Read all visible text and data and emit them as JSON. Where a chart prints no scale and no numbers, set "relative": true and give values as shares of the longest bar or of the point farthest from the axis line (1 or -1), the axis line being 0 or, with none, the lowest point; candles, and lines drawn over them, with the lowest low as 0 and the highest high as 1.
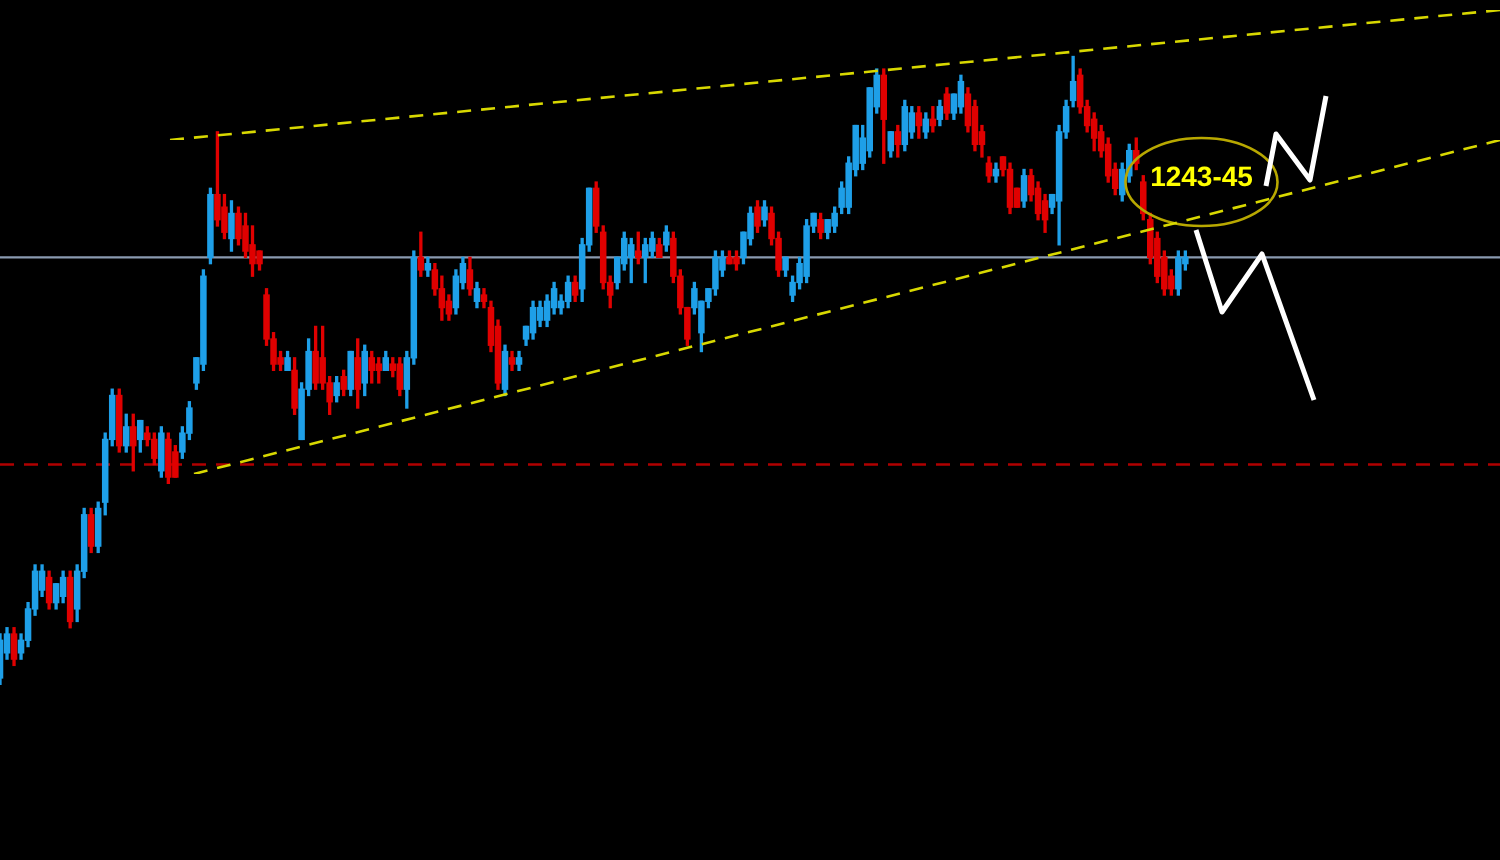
{
  "chart_data": [
    {
      "type": "candlestick",
      "relative": true,
      "legend": false,
      "categories": [
        null,
        null,
        null,
        null,
        null,
        null,
        null,
        null,
        null,
        null,
        null,
        null,
        null,
        null,
        null,
        null,
        null,
        null,
        null,
        null,
        null,
        null,
        null,
        null,
        null,
        null,
        null,
        null,
        null,
        null,
        null,
        null,
        null,
        null,
        null,
        null,
        null,
        null,
        null,
        null,
        null,
        null,
        null,
        null,
        null,
        null,
        null,
        null,
        null,
        null,
        null,
        null,
        null,
        null,
        null,
        null,
        null,
        null,
        null,
        null,
        null,
        null,
        null,
        null,
        null,
        null,
        null,
        null,
        null,
        null,
        null,
        null,
        null,
        null,
        null,
        null,
        null,
        null,
        null,
        null,
        null,
        null,
        null,
        null,
        null,
        null,
        null,
        null,
        null,
        null,
        null,
        null,
        null,
        null,
        null,
        null,
        null,
        null,
        null,
        null,
        null,
        null,
        null,
        null,
        null,
        null,
        null,
        null,
        null,
        null,
        null,
        null,
        null,
        null,
        null,
        null,
        null,
        null,
        null,
        null,
        null,
        null,
        null,
        null,
        null,
        null,
        null,
        null,
        null,
        null,
        null,
        null,
        null,
        null,
        null,
        null,
        null,
        null,
        null,
        null,
        null,
        null,
        null,
        null,
        null,
        null,
        null,
        null,
        null,
        null,
        null,
        null,
        null,
        null,
        null,
        null,
        null,
        null,
        null,
        null,
        null,
        null,
        null,
        null,
        null,
        null,
        null,
        null,
        null,
        null
      ],
      "ohlc": [
        [
          0.01,
          0.08,
          0,
          0.07
        ],
        [
          0.05,
          0.09,
          0.04,
          0.08
        ],
        [
          0.08,
          0.09,
          0.03,
          0.04
        ],
        [
          0.05,
          0.08,
          0.04,
          0.07
        ],
        [
          0.07,
          0.13,
          0.06,
          0.12
        ],
        [
          0.12,
          0.19,
          0.11,
          0.18
        ],
        [
          0.15,
          0.19,
          0.14,
          0.18
        ],
        [
          0.17,
          0.18,
          0.12,
          0.13
        ],
        [
          0.13,
          0.16,
          0.12,
          0.16
        ],
        [
          0.14,
          0.18,
          0.13,
          0.17
        ],
        [
          0.17,
          0.18,
          0.09,
          0.1
        ],
        [
          0.12,
          0.19,
          0.1,
          0.18
        ],
        [
          0.18,
          0.28,
          0.17,
          0.27
        ],
        [
          0.27,
          0.28,
          0.21,
          0.22
        ],
        [
          0.22,
          0.29,
          0.21,
          0.28
        ],
        [
          0.29,
          0.4,
          0.27,
          0.39
        ],
        [
          0.39,
          0.47,
          0.38,
          0.46
        ],
        [
          0.46,
          0.47,
          0.37,
          0.38
        ],
        [
          0.38,
          0.43,
          0.37,
          0.41
        ],
        [
          0.41,
          0.43,
          0.34,
          0.38
        ],
        [
          0.39,
          0.42,
          0.37,
          0.42
        ],
        [
          0.4,
          0.41,
          0.38,
          0.39
        ],
        [
          0.39,
          0.4,
          0.35,
          0.36
        ],
        [
          0.34,
          0.41,
          0.33,
          0.4
        ],
        [
          0.39,
          0.4,
          0.32,
          0.33
        ],
        [
          0.37,
          0.38,
          0.33,
          0.33
        ],
        [
          0.37,
          0.41,
          0.36,
          0.4
        ],
        [
          0.4,
          0.45,
          0.39,
          0.44
        ],
        [
          0.48,
          0.52,
          0.47,
          0.52
        ],
        [
          0.51,
          0.66,
          0.5,
          0.65
        ],
        [
          0.68,
          0.79,
          0.67,
          0.78
        ],
        [
          0.78,
          0.88,
          0.73,
          0.74
        ],
        [
          0.76,
          0.78,
          0.71,
          0.72
        ],
        [
          0.71,
          0.77,
          0.69,
          0.75
        ],
        [
          0.75,
          0.76,
          0.7,
          0.71
        ],
        [
          0.73,
          0.75,
          0.68,
          0.69
        ],
        [
          0.7,
          0.73,
          0.65,
          0.67
        ],
        [
          0.69,
          0.69,
          0.66,
          0.67
        ],
        [
          0.62,
          0.63,
          0.54,
          0.55
        ],
        [
          0.55,
          0.56,
          0.5,
          0.51
        ],
        [
          0.52,
          0.53,
          0.5,
          0.51
        ],
        [
          0.5,
          0.53,
          0.5,
          0.52
        ],
        [
          0.5,
          0.52,
          0.43,
          0.44
        ],
        [
          0.39,
          0.48,
          0.39,
          0.47
        ],
        [
          0.47,
          0.55,
          0.46,
          0.53
        ],
        [
          0.53,
          0.57,
          0.47,
          0.48
        ],
        [
          0.52,
          0.57,
          0.47,
          0.48
        ],
        [
          0.48,
          0.49,
          0.43,
          0.45
        ],
        [
          0.46,
          0.49,
          0.45,
          0.48
        ],
        [
          0.49,
          0.5,
          0.46,
          0.47
        ],
        [
          0.47,
          0.53,
          0.46,
          0.53
        ],
        [
          0.52,
          0.55,
          0.44,
          0.47
        ],
        [
          0.48,
          0.54,
          0.46,
          0.53
        ],
        [
          0.52,
          0.53,
          0.48,
          0.5
        ],
        [
          0.51,
          0.52,
          0.48,
          0.5
        ],
        [
          0.5,
          0.53,
          0.5,
          0.52
        ],
        [
          0.51,
          0.52,
          0.49,
          0.5
        ],
        [
          0.51,
          0.52,
          0.46,
          0.47
        ],
        [
          0.47,
          0.53,
          0.44,
          0.52
        ],
        [
          0.52,
          0.69,
          0.51,
          0.68
        ],
        [
          0.68,
          0.72,
          0.65,
          0.66
        ],
        [
          0.66,
          0.68,
          0.65,
          0.67
        ],
        [
          0.66,
          0.67,
          0.62,
          0.63
        ],
        [
          0.63,
          0.65,
          0.58,
          0.6
        ],
        [
          0.61,
          0.62,
          0.58,
          0.59
        ],
        [
          0.6,
          0.66,
          0.59,
          0.65
        ],
        [
          0.64,
          0.68,
          0.63,
          0.67
        ],
        [
          0.66,
          0.68,
          0.62,
          0.63
        ],
        [
          0.61,
          0.64,
          0.6,
          0.63
        ],
        [
          0.62,
          0.63,
          0.6,
          0.61
        ],
        [
          0.6,
          0.61,
          0.53,
          0.54
        ],
        [
          0.57,
          0.58,
          0.47,
          0.48
        ],
        [
          0.47,
          0.54,
          0.46,
          0.53
        ],
        [
          0.52,
          0.53,
          0.5,
          0.51
        ],
        [
          0.51,
          0.53,
          0.5,
          0.52
        ],
        [
          0.55,
          0.57,
          0.54,
          0.57
        ],
        [
          0.56,
          0.61,
          0.55,
          0.6
        ],
        [
          0.58,
          0.61,
          0.57,
          0.6
        ],
        [
          0.58,
          0.62,
          0.57,
          0.61
        ],
        [
          0.6,
          0.64,
          0.59,
          0.63
        ],
        [
          0.6,
          0.62,
          0.59,
          0.61
        ],
        [
          0.61,
          0.65,
          0.6,
          0.64
        ],
        [
          0.64,
          0.65,
          0.61,
          0.62
        ],
        [
          0.63,
          0.71,
          0.61,
          0.7
        ],
        [
          0.7,
          0.79,
          0.69,
          0.79
        ],
        [
          0.79,
          0.8,
          0.72,
          0.73
        ],
        [
          0.72,
          0.73,
          0.63,
          0.64
        ],
        [
          0.64,
          0.65,
          0.6,
          0.62
        ],
        [
          0.64,
          0.68,
          0.63,
          0.68
        ],
        [
          0.67,
          0.72,
          0.66,
          0.71
        ],
        [
          0.68,
          0.71,
          0.64,
          0.7
        ],
        [
          0.69,
          0.72,
          0.67,
          0.68
        ],
        [
          0.68,
          0.71,
          0.64,
          0.7
        ],
        [
          0.69,
          0.72,
          0.68,
          0.71
        ],
        [
          0.7,
          0.71,
          0.68,
          0.68
        ],
        [
          0.7,
          0.73,
          0.69,
          0.72
        ],
        [
          0.71,
          0.72,
          0.64,
          0.65
        ],
        [
          0.65,
          0.66,
          0.59,
          0.6
        ],
        [
          0.6,
          0.6,
          0.54,
          0.55
        ],
        [
          0.6,
          0.64,
          0.59,
          0.63
        ],
        [
          0.56,
          0.61,
          0.53,
          0.61
        ],
        [
          0.61,
          0.63,
          0.6,
          0.63
        ],
        [
          0.63,
          0.69,
          0.62,
          0.68
        ],
        [
          0.66,
          0.69,
          0.65,
          0.68
        ],
        [
          0.68,
          0.69,
          0.67,
          0.67
        ],
        [
          0.68,
          0.69,
          0.66,
          0.67
        ],
        [
          0.68,
          0.72,
          0.67,
          0.72
        ],
        [
          0.71,
          0.76,
          0.7,
          0.75
        ],
        [
          0.76,
          0.77,
          0.72,
          0.73
        ],
        [
          0.74,
          0.77,
          0.73,
          0.76
        ],
        [
          0.75,
          0.76,
          0.7,
          0.71
        ],
        [
          0.71,
          0.72,
          0.65,
          0.66
        ],
        [
          0.66,
          0.68,
          0.65,
          0.68
        ],
        [
          0.62,
          0.65,
          0.61,
          0.64
        ],
        [
          0.64,
          0.68,
          0.63,
          0.67
        ],
        [
          0.65,
          0.74,
          0.64,
          0.73
        ],
        [
          0.73,
          0.75,
          0.72,
          0.75
        ],
        [
          0.74,
          0.75,
          0.71,
          0.72
        ],
        [
          0.72,
          0.74,
          0.71,
          0.74
        ],
        [
          0.73,
          0.76,
          0.72,
          0.75
        ],
        [
          0.76,
          0.8,
          0.75,
          0.79
        ],
        [
          0.76,
          0.84,
          0.75,
          0.83
        ],
        [
          0.82,
          0.89,
          0.81,
          0.89
        ],
        [
          0.83,
          0.89,
          0.82,
          0.87
        ],
        [
          0.85,
          0.95,
          0.84,
          0.95
        ],
        [
          0.92,
          0.98,
          0.91,
          0.97
        ],
        [
          0.97,
          0.98,
          0.83,
          0.9
        ],
        [
          0.85,
          0.88,
          0.84,
          0.88
        ],
        [
          0.88,
          0.89,
          0.84,
          0.86
        ],
        [
          0.86,
          0.93,
          0.85,
          0.92
        ],
        [
          0.88,
          0.92,
          0.87,
          0.91
        ],
        [
          0.91,
          0.92,
          0.87,
          0.89
        ],
        [
          0.88,
          0.91,
          0.87,
          0.9
        ],
        [
          0.9,
          0.92,
          0.88,
          0.89
        ],
        [
          0.9,
          0.93,
          0.89,
          0.92
        ],
        [
          0.94,
          0.95,
          0.9,
          0.91
        ],
        [
          0.91,
          0.94,
          0.9,
          0.94
        ],
        [
          0.92,
          0.97,
          0.91,
          0.96
        ],
        [
          0.94,
          0.95,
          0.88,
          0.89
        ],
        [
          0.92,
          0.93,
          0.85,
          0.86
        ],
        [
          0.88,
          0.89,
          0.84,
          0.86
        ],
        [
          0.83,
          0.84,
          0.8,
          0.81
        ],
        [
          0.81,
          0.83,
          0.8,
          0.82
        ],
        [
          0.84,
          0.84,
          0.81,
          0.82
        ],
        [
          0.82,
          0.83,
          0.75,
          0.76
        ],
        [
          0.79,
          0.79,
          0.76,
          0.76
        ],
        [
          0.77,
          0.82,
          0.76,
          0.81
        ],
        [
          0.81,
          0.82,
          0.77,
          0.78
        ],
        [
          0.79,
          0.8,
          0.74,
          0.75
        ],
        [
          0.77,
          0.78,
          0.72,
          0.74
        ],
        [
          0.76,
          0.78,
          0.75,
          0.78
        ],
        [
          0.77,
          0.89,
          0.7,
          0.88
        ],
        [
          0.88,
          0.93,
          0.87,
          0.92
        ],
        [
          0.93,
          1,
          0.92,
          0.96
        ],
        [
          0.97,
          0.98,
          0.91,
          0.92
        ],
        [
          0.92,
          0.93,
          0.88,
          0.89
        ],
        [
          0.9,
          0.91,
          0.85,
          0.87
        ],
        [
          0.88,
          0.89,
          0.84,
          0.85
        ],
        [
          0.86,
          0.87,
          0.8,
          0.81
        ],
        [
          0.82,
          0.83,
          0.78,
          0.79
        ],
        [
          0.78,
          0.83,
          0.77,
          0.82
        ],
        [
          0.81,
          0.86,
          0.8,
          0.85
        ],
        [
          0.85,
          0.87,
          0.82,
          0.83
        ],
        [
          0.8,
          0.81,
          0.74,
          0.75
        ],
        [
          0.74,
          0.75,
          0.67,
          0.68
        ],
        [
          0.71,
          0.72,
          0.64,
          0.65
        ],
        [
          0.68,
          0.69,
          0.62,
          0.63
        ],
        [
          0.65,
          0.66,
          0.62,
          0.63
        ],
        [
          0.63,
          0.69,
          0.62,
          0.68
        ],
        [
          0.67,
          0.69,
          0.66,
          0.68
        ]
      ],
      "colors": [
        "#1e9fe8",
        "#1e9fe8",
        "#e00000",
        "#1e9fe8",
        "#1e9fe8",
        "#1e9fe8",
        "#1e9fe8",
        "#e00000",
        "#1e9fe8",
        "#1e9fe8",
        "#e00000",
        "#1e9fe8",
        "#1e9fe8",
        "#e00000",
        "#1e9fe8",
        "#1e9fe8",
        "#1e9fe8",
        "#e00000",
        "#1e9fe8",
        "#e00000",
        "#1e9fe8",
        "#e00000",
        "#e00000",
        "#1e9fe8",
        "#e00000",
        "#e00000",
        "#1e9fe8",
        "#1e9fe8",
        "#1e9fe8",
        "#1e9fe8",
        "#1e9fe8",
        "#e00000",
        "#e00000",
        "#1e9fe8",
        "#e00000",
        "#e00000",
        "#e00000",
        "#e00000",
        "#e00000",
        "#e00000",
        "#e00000",
        "#1e9fe8",
        "#e00000",
        "#1e9fe8",
        "#1e9fe8",
        "#e00000",
        "#e00000",
        "#e00000",
        "#1e9fe8",
        "#e00000",
        "#1e9fe8",
        "#e00000",
        "#1e9fe8",
        "#e00000",
        "#e00000",
        "#1e9fe8",
        "#e00000",
        "#e00000",
        "#1e9fe8",
        "#1e9fe8",
        "#e00000",
        "#1e9fe8",
        "#e00000",
        "#e00000",
        "#e00000",
        "#1e9fe8",
        "#1e9fe8",
        "#e00000",
        "#1e9fe8",
        "#e00000",
        "#e00000",
        "#e00000",
        "#1e9fe8",
        "#e00000",
        "#1e9fe8",
        "#1e9fe8",
        "#1e9fe8",
        "#1e9fe8",
        "#1e9fe8",
        "#1e9fe8",
        "#1e9fe8",
        "#1e9fe8",
        "#e00000",
        "#1e9fe8",
        "#1e9fe8",
        "#e00000",
        "#e00000",
        "#e00000",
        "#1e9fe8",
        "#1e9fe8",
        "#1e9fe8",
        "#e00000",
        "#1e9fe8",
        "#1e9fe8",
        "#e00000",
        "#1e9fe8",
        "#e00000",
        "#e00000",
        "#e00000",
        "#1e9fe8",
        "#1e9fe8",
        "#1e9fe8",
        "#1e9fe8",
        "#1e9fe8",
        "#e00000",
        "#e00000",
        "#1e9fe8",
        "#1e9fe8",
        "#e00000",
        "#1e9fe8",
        "#e00000",
        "#e00000",
        "#1e9fe8",
        "#1e9fe8",
        "#1e9fe8",
        "#1e9fe8",
        "#1e9fe8",
        "#e00000",
        "#1e9fe8",
        "#1e9fe8",
        "#1e9fe8",
        "#1e9fe8",
        "#1e9fe8",
        "#1e9fe8",
        "#1e9fe8",
        "#1e9fe8",
        "#e00000",
        "#1e9fe8",
        "#e00000",
        "#1e9fe8",
        "#1e9fe8",
        "#e00000",
        "#1e9fe8",
        "#e00000",
        "#1e9fe8",
        "#e00000",
        "#1e9fe8",
        "#1e9fe8",
        "#e00000",
        "#e00000",
        "#e00000",
        "#e00000",
        "#1e9fe8",
        "#e00000",
        "#e00000",
        "#e00000",
        "#1e9fe8",
        "#e00000",
        "#e00000",
        "#e00000",
        "#1e9fe8",
        "#1e9fe8",
        "#1e9fe8",
        "#1e9fe8",
        "#e00000",
        "#e00000",
        "#e00000",
        "#e00000",
        "#e00000",
        "#e00000",
        "#1e9fe8",
        "#1e9fe8",
        "#e00000",
        "#e00000",
        "#e00000",
        "#e00000",
        "#e00000",
        "#e00000",
        "#1e9fe8",
        "#1e9fe8"
      ],
      "ref_lines": [
        {
          "axis": "y",
          "value": 0.68,
          "color": "#8a9ab0",
          "line_style": "solid"
        },
        {
          "axis": "y",
          "value": 0.35,
          "color": "#b00000",
          "line_style": "dashed"
        }
      ],
      "annotations": [
        "1243-45"
      ]
    },
    {
      "type": "line",
      "relative": true,
      "legend": false,
      "line_style": "dashed",
      "marker": "none",
      "categories": [
        null,
        null
      ],
      "series": [
        {
          "color": "#d8d800",
          "values": [
            0,
            1
          ]
        }
      ]
    },
    {
      "type": "line",
      "relative": true,
      "legend": false,
      "line_style": "dashed",
      "marker": "none",
      "categories": [
        null,
        null
      ],
      "series": [
        {
          "color": "#d8d800",
          "values": [
            0,
            1
          ]
        }
      ]
    }
  ]
}
